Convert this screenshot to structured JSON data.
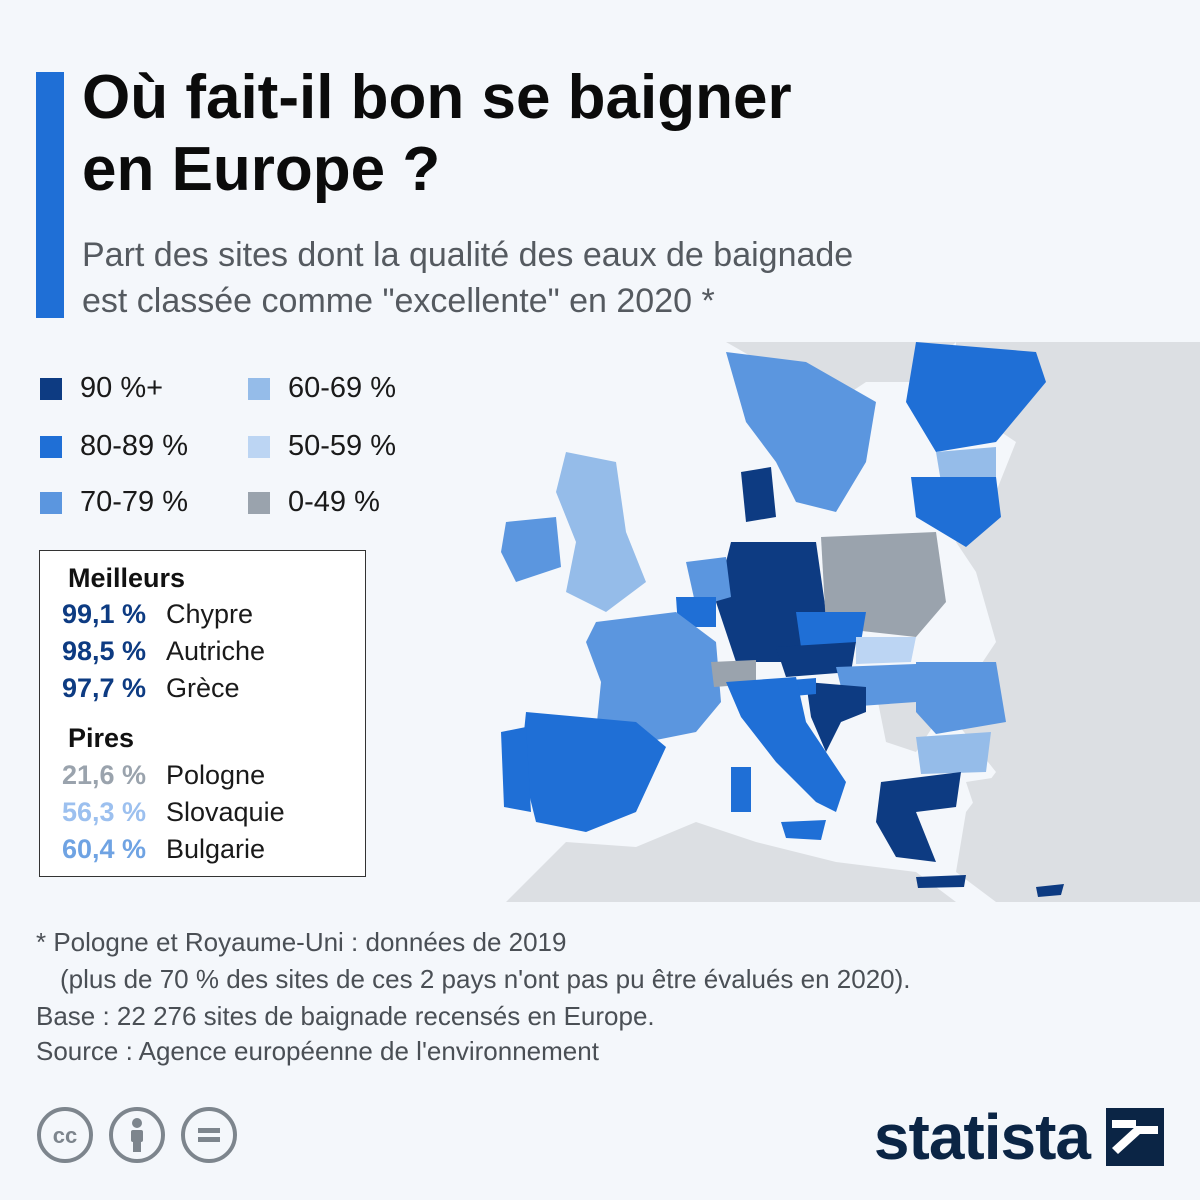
{
  "header": {
    "title_line1": "Où fait-il bon se baigner",
    "title_line2": "en Europe ?",
    "subtitle_line1": "Part des sites dont la qualité des eaux de baignade",
    "subtitle_line2": "est classée comme \"excellente\" en 2020 *"
  },
  "legend": {
    "items": [
      {
        "label": "90 %+",
        "color": "#0d3b82"
      },
      {
        "label": "80-89 %",
        "color": "#1f6fd6"
      },
      {
        "label": "70-79 %",
        "color": "#5b96df"
      },
      {
        "label": "60-69 %",
        "color": "#95bce9"
      },
      {
        "label": "50-59 %",
        "color": "#bcd5f3"
      },
      {
        "label": "0-49 %",
        "color": "#9aa3ad"
      }
    ]
  },
  "ranking": {
    "best_heading": "Meilleurs",
    "best": [
      {
        "value": "99,1 %",
        "country": "Chypre",
        "color": "#0d3b82"
      },
      {
        "value": "98,5 %",
        "country": "Autriche",
        "color": "#0d3b82"
      },
      {
        "value": "97,7 %",
        "country": "Grèce",
        "color": "#0d3b82"
      }
    ],
    "worst_heading": "Pires",
    "worst": [
      {
        "value": "21,6 %",
        "country": "Pologne",
        "color": "#9aa3ad"
      },
      {
        "value": "56,3 %",
        "country": "Slovaquie",
        "color": "#9cc0ef"
      },
      {
        "value": "60,4 %",
        "country": "Bulgarie",
        "color": "#6fa3e3"
      }
    ]
  },
  "map": {
    "colors": {
      "sea": "#f4f7fb",
      "land_no_data": "#dcdfe3",
      "bin_90_plus": "#0d3b82",
      "bin_80_89": "#1f6fd6",
      "bin_70_79": "#5b96df",
      "bin_60_69": "#95bce9",
      "bin_50_59": "#bcd5f3",
      "bin_0_49": "#9aa3ad"
    }
  },
  "notes": {
    "line1": "* Pologne et Royaume-Uni : données de 2019",
    "line2": "(plus de 70 % des sites de ces 2 pays n'ont pas pu être évalués en 2020).",
    "line3": "Base : 22 276 sites de baignade recensés en Europe.",
    "source": "Source : Agence européenne de l'environnement"
  },
  "footer": {
    "license_icons": [
      "cc-icon",
      "attribution-icon",
      "no-derivatives-icon"
    ],
    "brand": "statista",
    "brand_icon": "statista-logo-icon"
  }
}
